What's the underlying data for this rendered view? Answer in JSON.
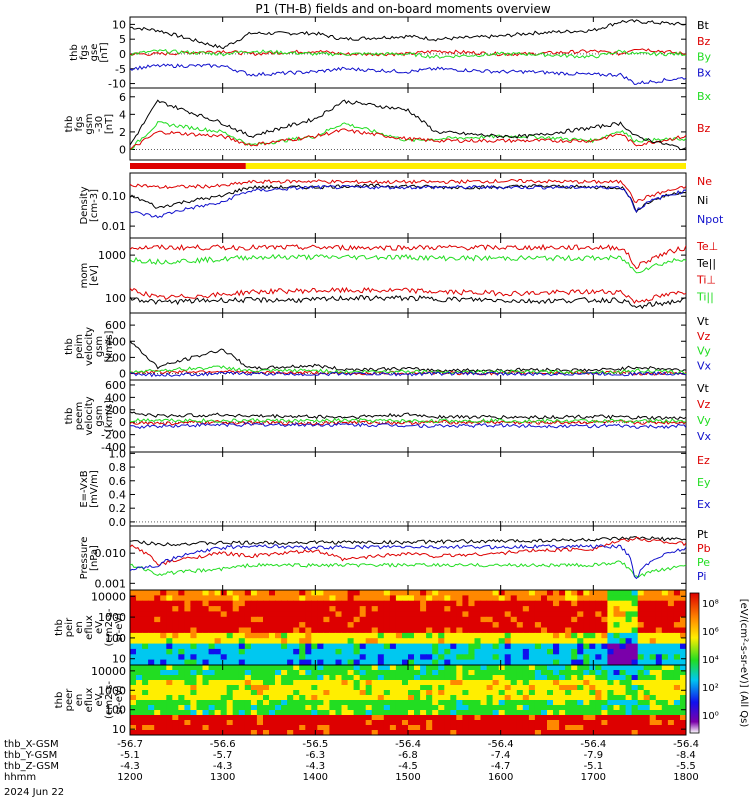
{
  "title": "P1 (TH-B) fields and on-board moments overview",
  "colors": {
    "black": "#000000",
    "red": "#dd0000",
    "green": "#22dd22",
    "blue": "#1010cc",
    "yellow": "#ffee00",
    "axis": "#000000"
  },
  "panels": [
    {
      "id": "fgs-gse",
      "ylabel": [
        "thb",
        "fgs",
        "gse",
        "[nT]"
      ],
      "ticks": [
        "10",
        "5",
        "0",
        "-5",
        "-10"
      ],
      "tick_values": [
        10,
        5,
        0,
        -5,
        -10
      ],
      "ylim": [
        -11.5,
        12.5
      ],
      "scale": "linear",
      "legend": [
        {
          "text": "Bt",
          "color": "black"
        },
        {
          "text": "Bz",
          "color": "red"
        },
        {
          "text": "By",
          "color": "green"
        },
        {
          "text": "Bx",
          "color": "blue"
        }
      ]
    },
    {
      "id": "fgs-gsm",
      "ylabel": [
        "thb",
        "fgs",
        "gsm",
        "-30",
        "[nT]"
      ],
      "ticks": [
        "6",
        "4",
        "2",
        "0"
      ],
      "tick_values": [
        6,
        4,
        2,
        0
      ],
      "ylim": [
        -1.2,
        7.0
      ],
      "scale": "linear",
      "legend": [
        {
          "text": "Bx",
          "color": "green"
        },
        {
          "text": "Bz",
          "color": "red"
        }
      ]
    },
    {
      "id": "density",
      "ylabel": [
        "Density",
        "[cm-3]"
      ],
      "ticks": [
        "0.10",
        "0.01"
      ],
      "tick_values": [
        0.1,
        0.01
      ],
      "ylim": [
        0.004,
        0.6
      ],
      "scale": "log",
      "legend": [
        {
          "text": "Ne",
          "color": "red"
        },
        {
          "text": "Ni",
          "color": "black"
        },
        {
          "text": "Npot",
          "color": "blue"
        }
      ]
    },
    {
      "id": "temperature",
      "ylabel": [
        "mom",
        "[eV]"
      ],
      "ticks": [
        "1000",
        "100"
      ],
      "tick_values": [
        1000,
        100
      ],
      "ylim": [
        45,
        2500
      ],
      "scale": "log",
      "legend": [
        {
          "text": "Te⊥",
          "color": "red"
        },
        {
          "text": "Te||",
          "color": "black"
        },
        {
          "text": "Ti⊥",
          "color": "red"
        },
        {
          "text": "Ti||",
          "color": "green"
        }
      ]
    },
    {
      "id": "peim-velocity",
      "ylabel": [
        "thb",
        "peim",
        "velocity",
        "gsm",
        "[km/s]"
      ],
      "ticks": [
        "600",
        "400",
        "200",
        "0"
      ],
      "tick_values": [
        600,
        400,
        200,
        0
      ],
      "ylim": [
        -80,
        750
      ],
      "scale": "linear",
      "legend": [
        {
          "text": "Vt",
          "color": "black"
        },
        {
          "text": "Vz",
          "color": "red"
        },
        {
          "text": "Vy",
          "color": "green"
        },
        {
          "text": "Vx",
          "color": "blue"
        }
      ]
    },
    {
      "id": "peem-velocity",
      "ylabel": [
        "thb",
        "peem",
        "velocity",
        "gsm",
        "[km/s]"
      ],
      "ticks": [
        "600",
        "400",
        "200",
        "0",
        "-200",
        "-400"
      ],
      "tick_values": [
        600,
        400,
        200,
        0,
        -200,
        -400
      ],
      "ylim": [
        -480,
        680
      ],
      "scale": "linear",
      "legend": [
        {
          "text": "Vt",
          "color": "black"
        },
        {
          "text": "Vz",
          "color": "red"
        },
        {
          "text": "Vy",
          "color": "green"
        },
        {
          "text": "Vx",
          "color": "blue"
        }
      ]
    },
    {
      "id": "e-field",
      "ylabel": [
        "E=-VxB",
        "[mV/m]"
      ],
      "ticks": [
        "1.0",
        "0.8",
        "0.6",
        "0.4",
        "0.2",
        "0.0"
      ],
      "tick_values": [
        1.0,
        0.8,
        0.6,
        0.4,
        0.2,
        0.0
      ],
      "ylim": [
        -0.06,
        1.02
      ],
      "scale": "linear",
      "legend": [
        {
          "text": "Ez",
          "color": "red"
        },
        {
          "text": "Ey",
          "color": "green"
        },
        {
          "text": "Ex",
          "color": "blue"
        }
      ]
    },
    {
      "id": "pressure",
      "ylabel": [
        "Pressure",
        "[nPa]"
      ],
      "ticks": [
        "0.010",
        "0.001"
      ],
      "tick_values": [
        0.01,
        0.001
      ],
      "ylim": [
        0.0006,
        0.08
      ],
      "scale": "log",
      "legend": [
        {
          "text": "Pt",
          "color": "black"
        },
        {
          "text": "Pb",
          "color": "red"
        },
        {
          "text": "Pe",
          "color": "green"
        },
        {
          "text": "Pi",
          "color": "blue"
        }
      ]
    },
    {
      "id": "peir-eflux",
      "ylabel": [
        "thb",
        "peir",
        "en",
        "eflux",
        "eV",
        "(cm2-s-",
        "sr-eV)"
      ],
      "ticks": [
        "10000",
        "1000",
        "100",
        "10"
      ],
      "tick_values": [
        10000,
        1000,
        100,
        10
      ],
      "ylim": [
        5,
        20000
      ],
      "scale": "log",
      "spectrogram": true
    },
    {
      "id": "peer-eflux",
      "ylabel": [
        "thb",
        "peer",
        "en",
        "eflux",
        "eV",
        "(cm2-s-",
        "sr-eV)"
      ],
      "ticks": [
        "10000",
        "1000",
        "100",
        "10"
      ],
      "tick_values": [
        10000,
        1000,
        100,
        10
      ],
      "ylim": [
        5,
        20000
      ],
      "scale": "log",
      "spectrogram": true
    }
  ],
  "colorbar": {
    "ticks": [
      "10⁸",
      "10⁶",
      "10⁴",
      "10²",
      "10⁰"
    ],
    "label": "[eV/(cm²-s-sr-eV)] (All Qs)"
  },
  "mode_bar": {
    "segments": [
      {
        "start": 1200,
        "end": 1325,
        "color": "red"
      },
      {
        "start": 1325,
        "end": 1800,
        "color": "yellow"
      }
    ]
  },
  "time_axis": {
    "rows": [
      {
        "label": "thb_X-GSM",
        "values": [
          "-56.7",
          "-56.6",
          "-56.5",
          "-56.4",
          "-56.4",
          "-56.4",
          "-56.4"
        ]
      },
      {
        "label": "thb_Y-GSM",
        "values": [
          "-5.1",
          "-5.7",
          "-6.3",
          "-6.8",
          "-7.4",
          "-7.9",
          "-8.4"
        ]
      },
      {
        "label": "thb_Z-GSM",
        "values": [
          "-4.3",
          "-4.3",
          "-4.3",
          "-4.5",
          "-4.7",
          "-5.1",
          "-5.5"
        ]
      },
      {
        "label": "hhmm",
        "values": [
          "1200",
          "1300",
          "1400",
          "1500",
          "1600",
          "1700",
          "1800"
        ]
      }
    ],
    "date": "2024 Jun 22"
  },
  "chart_data": {
    "type": "line",
    "x_unit": "hhmm (UT), 2024 Jun 22",
    "x": [
      1200,
      1230,
      1300,
      1330,
      1400,
      1430,
      1500,
      1530,
      1600,
      1630,
      1700,
      1730,
      1745,
      1800
    ],
    "panels": [
      {
        "id": "fgs-gse",
        "series": [
          {
            "name": "Bt",
            "color": "black",
            "values": [
              9,
              8,
              2,
              7,
              7,
              5,
              6,
              5,
              6,
              7,
              8,
              11,
              11,
              10
            ]
          },
          {
            "name": "Bz",
            "color": "red",
            "values": [
              0,
              0,
              1,
              0,
              1,
              0,
              0,
              1,
              0,
              0,
              1,
              0,
              2,
              0
            ]
          },
          {
            "name": "By",
            "color": "green",
            "values": [
              0,
              1,
              0,
              1,
              0,
              0,
              0,
              -1,
              0,
              0,
              -1,
              1,
              0,
              0
            ]
          },
          {
            "name": "Bx",
            "color": "blue",
            "values": [
              -5,
              -4,
              -4,
              -7,
              -6,
              -5,
              -6,
              -5,
              -6,
              -6,
              -7,
              -7,
              -10,
              -8
            ]
          }
        ]
      },
      {
        "id": "fgs-gsm",
        "series": [
          {
            "name": "Bx",
            "color": "green",
            "values": [
              0,
              3,
              2,
              0.5,
              1.5,
              3,
              1,
              1.2,
              1.5,
              1.5,
              1.0,
              2.2,
              1.0,
              1.2
            ]
          },
          {
            "name": "Bz",
            "color": "red",
            "values": [
              0,
              2,
              1.5,
              0.5,
              1.5,
              2.2,
              1.2,
              1.0,
              1.0,
              1.0,
              1.0,
              1.8,
              0.5,
              1.5
            ]
          },
          {
            "name": "Bt",
            "color": "black",
            "values": [
              0.5,
              5.5,
              3,
              1.5,
              3.5,
              5.5,
              4.5,
              2,
              1.5,
              1.5,
              2.5,
              3,
              1.5,
              0
            ]
          }
        ]
      },
      {
        "id": "density",
        "series": [
          {
            "name": "Ne",
            "color": "red",
            "values": [
              0.25,
              0.2,
              0.22,
              0.3,
              0.32,
              0.3,
              0.3,
              0.3,
              0.32,
              0.32,
              0.3,
              0.3,
              0.06,
              0.2
            ]
          },
          {
            "name": "Ni",
            "color": "black",
            "values": [
              0.1,
              0.04,
              0.1,
              0.2,
              0.2,
              0.22,
              0.22,
              0.2,
              0.2,
              0.22,
              0.2,
              0.2,
              0.03,
              0.15
            ]
          },
          {
            "name": "Npot",
            "color": "blue",
            "values": [
              0.03,
              0.02,
              0.06,
              0.15,
              0.2,
              0.2,
              0.2,
              0.2,
              0.2,
              0.2,
              0.2,
              0.2,
              0.03,
              0.15
            ]
          }
        ]
      },
      {
        "id": "temperature",
        "series": [
          {
            "name": "Te⊥",
            "color": "red",
            "values": [
              1500,
              1500,
              1500,
              1500,
              1500,
              1500,
              1500,
              1500,
              1500,
              1500,
              1500,
              1500,
              500,
              1500
            ]
          },
          {
            "name": "Te||",
            "color": "black",
            "values": [
              100,
              80,
              90,
              90,
              90,
              100,
              100,
              95,
              90,
              85,
              90,
              90,
              60,
              90
            ]
          },
          {
            "name": "Ti⊥",
            "color": "red",
            "values": [
              160,
              100,
              120,
              140,
              150,
              150,
              150,
              140,
              130,
              130,
              140,
              140,
              80,
              140
            ]
          },
          {
            "name": "Ti||",
            "color": "green",
            "values": [
              800,
              700,
              800,
              900,
              900,
              900,
              900,
              850,
              850,
              850,
              850,
              850,
              400,
              850
            ]
          }
        ]
      },
      {
        "id": "peim-velocity",
        "series": [
          {
            "name": "Vt",
            "color": "black",
            "values": [
              400,
              80,
              300,
              60,
              100,
              50,
              60,
              40,
              40,
              50,
              40,
              60,
              80,
              40
            ]
          },
          {
            "name": "Vz",
            "color": "red",
            "values": [
              10,
              20,
              30,
              10,
              10,
              0,
              10,
              10,
              0,
              10,
              10,
              10,
              0,
              0
            ]
          },
          {
            "name": "Vy",
            "color": "green",
            "values": [
              20,
              40,
              80,
              30,
              40,
              20,
              30,
              20,
              20,
              20,
              20,
              20,
              40,
              10
            ]
          },
          {
            "name": "Vx",
            "color": "blue",
            "values": [
              0,
              -20,
              0,
              0,
              -10,
              0,
              -10,
              0,
              0,
              -10,
              0,
              -10,
              0,
              0
            ]
          }
        ]
      },
      {
        "id": "peem-velocity",
        "series": [
          {
            "name": "Vt",
            "color": "black",
            "values": [
              150,
              100,
              120,
              100,
              90,
              80,
              120,
              90,
              80,
              80,
              90,
              80,
              70,
              60
            ]
          },
          {
            "name": "Vz",
            "color": "red",
            "values": [
              0,
              -20,
              0,
              -10,
              -20,
              0,
              -10,
              0,
              0,
              -10,
              0,
              0,
              -10,
              0
            ]
          },
          {
            "name": "Vy",
            "color": "green",
            "values": [
              30,
              40,
              20,
              30,
              20,
              30,
              20,
              20,
              30,
              20,
              20,
              20,
              20,
              20
            ]
          },
          {
            "name": "Vx",
            "color": "blue",
            "values": [
              -80,
              -60,
              -40,
              -40,
              -40,
              -40,
              -50,
              -60,
              -50,
              -60,
              -60,
              -60,
              -80,
              -60
            ]
          }
        ]
      },
      {
        "id": "pressure",
        "series": [
          {
            "name": "Pt",
            "color": "black",
            "values": [
              0.025,
              0.02,
              0.022,
              0.022,
              0.023,
              0.023,
              0.023,
              0.024,
              0.025,
              0.026,
              0.028,
              0.03,
              0.032,
              0.028
            ]
          },
          {
            "name": "Pb",
            "color": "red",
            "values": [
              0.018,
              0.004,
              0.01,
              0.008,
              0.012,
              0.006,
              0.01,
              0.008,
              0.01,
              0.012,
              0.014,
              0.025,
              0.03,
              0.02
            ]
          },
          {
            "name": "Pe",
            "color": "green",
            "values": [
              0.004,
              0.002,
              0.003,
              0.004,
              0.004,
              0.004,
              0.004,
              0.004,
              0.004,
              0.004,
              0.004,
              0.005,
              0.0015,
              0.004
            ]
          },
          {
            "name": "Pi",
            "color": "blue",
            "values": [
              0.003,
              0.004,
              0.015,
              0.018,
              0.015,
              0.016,
              0.016,
              0.016,
              0.016,
              0.017,
              0.017,
              0.016,
              0.001,
              0.015
            ]
          }
        ]
      }
    ]
  }
}
